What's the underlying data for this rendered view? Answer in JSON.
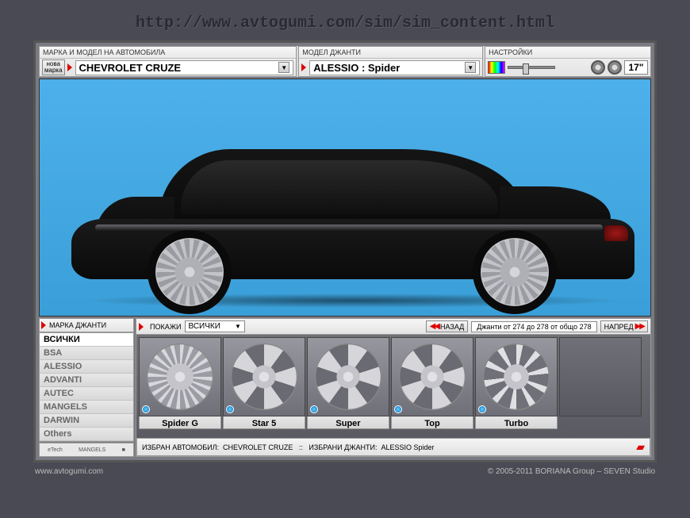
{
  "page_url": "http://www.avtogumi.com/sim/sim_content.html",
  "toolbar": {
    "car_panel": {
      "header": "МАРКА И МОДЕЛ НА АВТОМОБИЛА",
      "new_brand_btn": "нова\nмарка",
      "value": "CHEVROLET CRUZE"
    },
    "wheel_panel": {
      "header": "МОДЕЛ ДЖАНТИ",
      "value": "ALESSIO : Spider"
    },
    "settings_panel": {
      "header": "НАСТРОЙКИ",
      "size": "17\""
    }
  },
  "viewport": {
    "background_color": "#4db0ea",
    "car_color": "#101010",
    "rim_style": "multispoke-silver"
  },
  "brands": {
    "header": "МАРКА ДЖАНТИ",
    "items": [
      "ВСИЧКИ",
      "BSA",
      "ALESSIO",
      "ADVANTI",
      "AUTEC",
      "MANGELS",
      "DARWIN",
      "Others"
    ],
    "selected_index": 0
  },
  "filter": {
    "show_label": "ПОКАЖИ",
    "show_value": "ВСИЧКИ",
    "back_label": "НАЗАД",
    "range_text": "Джанти от 274 до 278 от общо 278",
    "fwd_label": "НАПРЕД"
  },
  "thumbs": [
    {
      "label": "Spider G",
      "spokes": "spokes-multi"
    },
    {
      "label": "Star 5",
      "spokes": "spokes-5"
    },
    {
      "label": "Super",
      "spokes": "spokes-5"
    },
    {
      "label": "Top",
      "spokes": "spokes-5"
    },
    {
      "label": "Turbo",
      "spokes": "spokes-thin"
    },
    {
      "label": "",
      "spokes": "",
      "empty": true
    }
  ],
  "status": {
    "car_label": "ИЗБРАН АВТОМОБИЛ:",
    "car_value": "CHEVROLET CRUZE",
    "sep": "::",
    "wheel_label": "ИЗБРАНИ ДЖАНТИ:",
    "wheel_value": "ALESSIO Spider"
  },
  "footer": {
    "left": "www.avtogumi.com",
    "right": "© 2005-2011 BORIANA Group – SEVEN Studio"
  }
}
